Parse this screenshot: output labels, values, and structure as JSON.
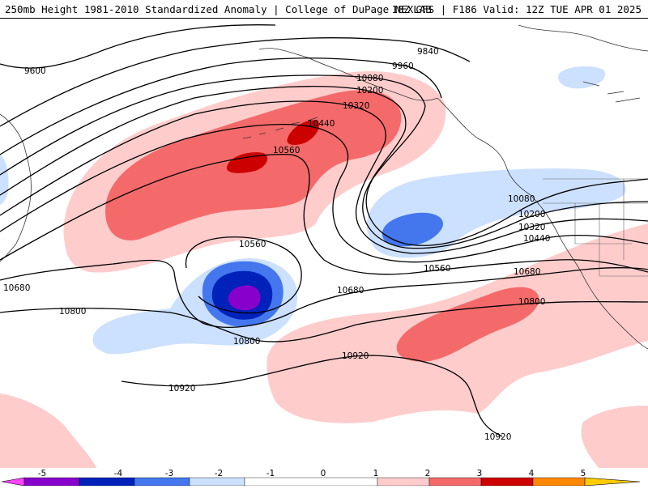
{
  "header": {
    "title": "250mb Height 1981-2010 Standardized Anomaly | College of DuPage NEXLAB",
    "run_info": "18Z GFS | F186 Valid: 12Z TUE APR 01 2025"
  },
  "contour_labels": [
    "9600",
    "9840",
    "9960",
    "10080",
    "10200",
    "10320",
    "10440",
    "10560",
    "10560",
    "10080",
    "10200",
    "10320",
    "10440",
    "10560",
    "10680",
    "10680",
    "10680",
    "10800",
    "10800",
    "10800",
    "10920",
    "10920",
    "10920"
  ],
  "colorbar": {
    "ticks": [
      "-5",
      "-4",
      "-3",
      "-2",
      "-1",
      "0",
      "1",
      "2",
      "3",
      "4",
      "5"
    ],
    "colors": {
      "lt_neg5": "#ff44ff",
      "neg5_neg4": "#8800cc",
      "neg4_neg3": "#0022bb",
      "neg3_neg2": "#4477ee",
      "neg2_neg1": "#cce0ff",
      "neg1_1": "#ffffff",
      "pos1_2": "#ffcccc",
      "pos2_3": "#f46a6a",
      "pos3_4": "#cc0000",
      "pos4_5": "#ff8800",
      "gt5": "#ffcc00"
    }
  }
}
